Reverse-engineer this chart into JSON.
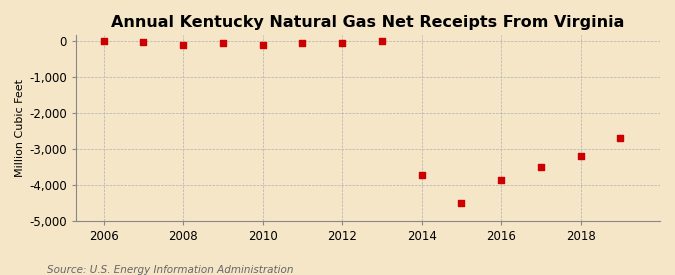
{
  "title": "Annual Kentucky Natural Gas Net Receipts From Virginia",
  "ylabel": "Million Cubic Feet",
  "source": "Source: U.S. Energy Information Administration",
  "background_color": "#f5e6c8",
  "plot_background_color": "#f5e6c8",
  "years": [
    2006,
    2007,
    2008,
    2009,
    2010,
    2011,
    2012,
    2013,
    2014,
    2015,
    2016,
    2017,
    2018,
    2019
  ],
  "values": [
    -10,
    -30,
    -120,
    -60,
    -130,
    -70,
    -50,
    -20,
    -3720,
    -4480,
    -3850,
    -3480,
    -3180,
    -2680
  ],
  "marker_color": "#cc0000",
  "marker_size": 4,
  "ylim": [
    -5000,
    150
  ],
  "yticks": [
    0,
    -1000,
    -2000,
    -3000,
    -4000,
    -5000
  ],
  "xticks": [
    2006,
    2008,
    2010,
    2012,
    2014,
    2016,
    2018
  ],
  "xlim": [
    2005.3,
    2020.0
  ],
  "title_fontsize": 11.5,
  "label_fontsize": 8,
  "tick_fontsize": 8.5,
  "source_fontsize": 7.5
}
